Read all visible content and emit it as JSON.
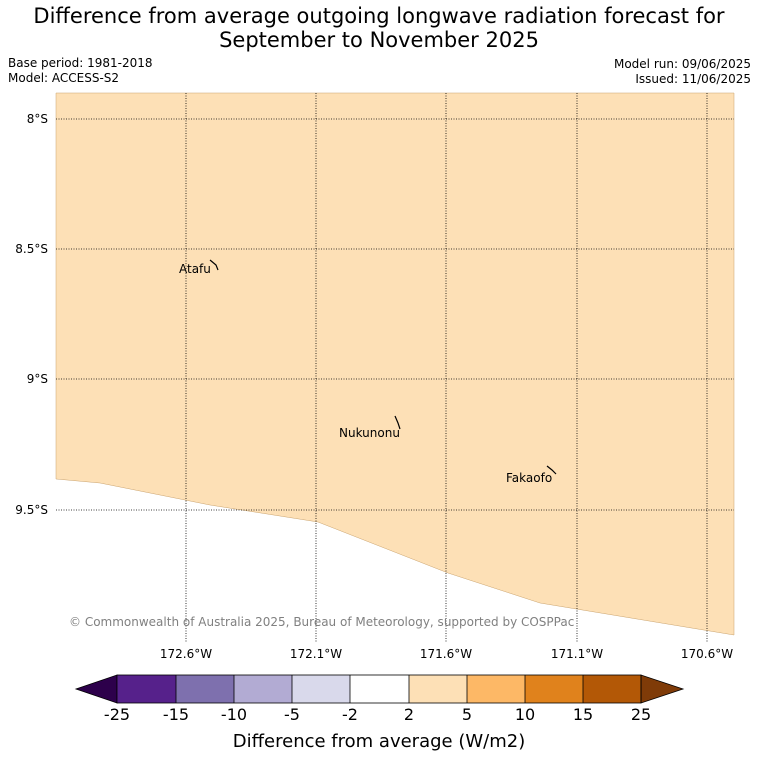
{
  "title_line1": "Difference from average outgoing longwave radiation forecast for",
  "title_line2": "September to November 2025",
  "base_period": "Base period: 1981-2018",
  "model": "Model: ACCESS-S2",
  "model_run": "Model run: 09/06/2025",
  "issued": "Issued: 11/06/2025",
  "lat_labels": [
    "8°S",
    "8.5°S",
    "9°S",
    "9.5°S"
  ],
  "lon_labels": [
    "172.6°W",
    "172.1°W",
    "171.6°W",
    "171.1°W",
    "170.6°W"
  ],
  "places": [
    "Atafu",
    "Nukunonu",
    "Fakaofo"
  ],
  "copyright": "© Commonwealth of Australia 2025, Bureau of Meteorology, supported by COSPPac",
  "field_color": "#fde0b6",
  "colorbar": {
    "label": "Difference from average (W/m2)",
    "ticks": [
      "-25",
      "-15",
      "-10",
      "-5",
      "-2",
      "2",
      "5",
      "10",
      "15",
      "25"
    ],
    "colors": [
      "#56218b",
      "#7e70ae",
      "#b2abd3",
      "#d9d9eb",
      "#ffffff",
      "#fde0b6",
      "#fdb866",
      "#e0821c",
      "#b35806"
    ],
    "low_extend_color": "#2d004b",
    "high_extend_color": "#7f3b08"
  }
}
